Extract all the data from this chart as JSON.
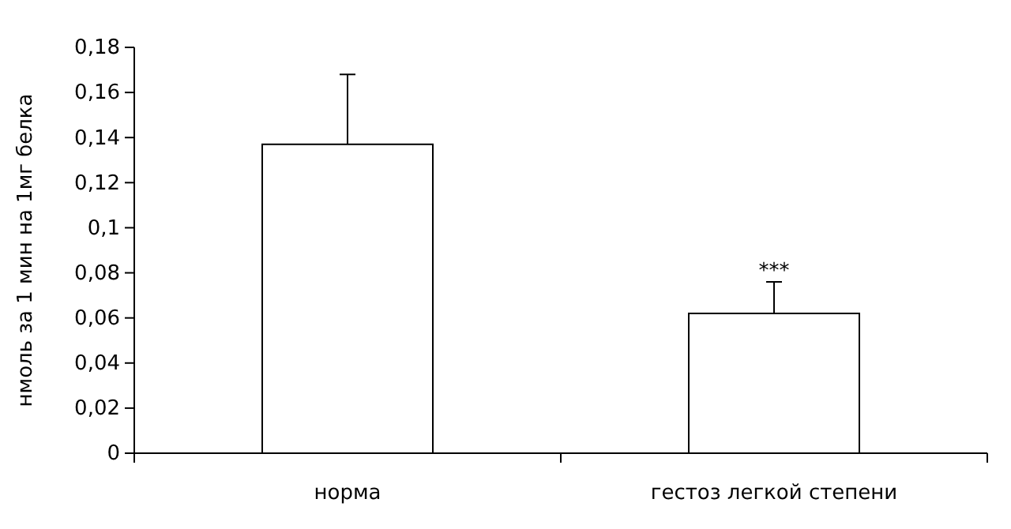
{
  "chart_data": {
    "type": "bar",
    "ylabel": "нмоль за 1 мин на 1мг белка",
    "categories": [
      "норма",
      "гестоз легкой степени"
    ],
    "values": [
      0.137,
      0.062
    ],
    "errors": [
      [
        0.137,
        0.168
      ],
      [
        0.062,
        0.076
      ]
    ],
    "color": "#ffffff",
    "ylim": [
      0,
      0.18
    ],
    "yticks": [
      0,
      {
        "value": 0.02,
        "label": "0,02"
      },
      {
        "value": 0.04,
        "label": "0,04"
      },
      {
        "value": 0.06,
        "label": "0,06"
      },
      {
        "value": 0.08,
        "label": "0,08"
      },
      {
        "value": 0.1,
        "label": "0,1"
      },
      {
        "value": 0.12,
        "label": "0,12"
      },
      {
        "value": 0.14,
        "label": "0,14"
      },
      {
        "value": 0.16,
        "label": "0,16"
      },
      {
        "value": 0.18,
        "label": "0,18"
      }
    ],
    "annotations": [
      {
        "text": "***",
        "x": "гестоз легкой степени",
        "y": 0.076
      }
    ],
    "grid": false
  }
}
